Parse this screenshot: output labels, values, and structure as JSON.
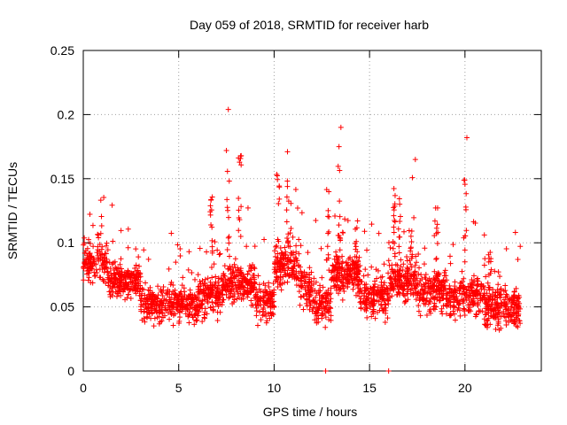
{
  "chart_data": {
    "type": "scatter",
    "title": "Day 059 of 2018, SRMTID for receiver harb",
    "xlabel": "GPS time / hours",
    "ylabel": "SRMTID / TECUs",
    "xlim": [
      0,
      24
    ],
    "ylim": [
      0,
      0.25
    ],
    "xticks": [
      0,
      5,
      10,
      15,
      20
    ],
    "yticks": [
      0,
      0.05,
      0.1,
      0.15,
      0.2,
      0.25
    ],
    "xtick_labels": [
      "0",
      "5",
      "10",
      "15",
      "20"
    ],
    "ytick_labels": [
      "0",
      "0.05",
      "0.1",
      "0.15",
      "0.2",
      "0.25"
    ],
    "grid": true,
    "marker": "+",
    "color": "#ff0000",
    "x_data_range": [
      0,
      22.9
    ],
    "series": [
      {
        "name": "SRMTID",
        "n_points_approx": 2600,
        "typical_range": [
          0.02,
          0.13
        ],
        "notable_points": [
          {
            "x": 7.6,
            "y": 0.204
          },
          {
            "x": 20.1,
            "y": 0.182
          },
          {
            "x": 13.5,
            "y": 0.19
          },
          {
            "x": 13.4,
            "y": 0.175
          },
          {
            "x": 7.5,
            "y": 0.172
          },
          {
            "x": 10.7,
            "y": 0.171
          },
          {
            "x": 17.4,
            "y": 0.165
          },
          {
            "x": 12.7,
            "y": 0.0
          },
          {
            "x": 16.0,
            "y": 0.0
          }
        ]
      }
    ]
  }
}
